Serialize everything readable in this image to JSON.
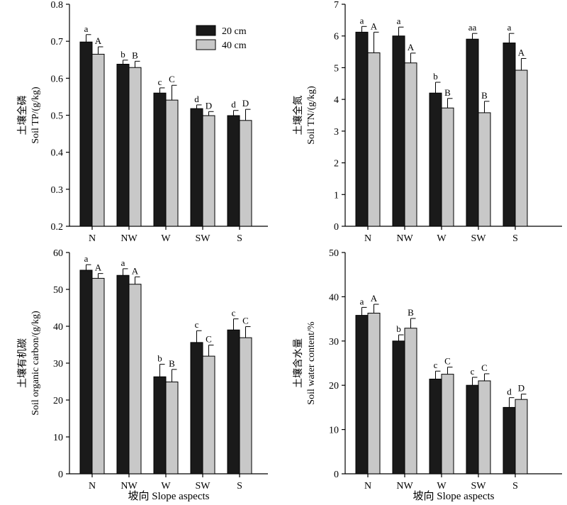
{
  "colors": {
    "series_20": "#1a1a1a",
    "series_40": "#c8c8c8",
    "axis": "#000000",
    "bar_edge": "#000000"
  },
  "legend": {
    "item_20": "20 cm",
    "item_40": "40 cm"
  },
  "chart_data": [
    {
      "type": "bar",
      "ylabel": [
        "土壤全磷",
        "Soil TP/(g/kg)"
      ],
      "xlabel": "",
      "categories": [
        "N",
        "NW",
        "W",
        "SW",
        "S"
      ],
      "ylim": [
        0.2,
        0.8
      ],
      "yticks": [
        "0.2",
        "0.3",
        "0.4",
        "0.5",
        "0.6",
        "0.7",
        "0.8"
      ],
      "series": [
        {
          "name": "20 cm",
          "values": [
            0.698,
            0.638,
            0.56,
            0.518,
            0.499
          ],
          "errors": [
            0.02,
            0.011,
            0.014,
            0.01,
            0.014
          ],
          "letters": [
            "a",
            "b",
            "c",
            "d",
            "d"
          ]
        },
        {
          "name": "40 cm",
          "values": [
            0.665,
            0.629,
            0.541,
            0.499,
            0.486
          ],
          "errors": [
            0.02,
            0.017,
            0.04,
            0.011,
            0.03
          ],
          "letters": [
            "A",
            "B",
            "C",
            "D",
            "D"
          ]
        }
      ]
    },
    {
      "type": "bar",
      "ylabel": [
        "土壤全氮",
        "Soil TN/(g/kg)"
      ],
      "xlabel": "",
      "categories": [
        "N",
        "NW",
        "W",
        "SW",
        "S"
      ],
      "ylim": [
        0,
        7
      ],
      "yticks": [
        "0",
        "1",
        "2",
        "3",
        "4",
        "5",
        "6",
        "7"
      ],
      "series": [
        {
          "name": "20 cm",
          "values": [
            6.12,
            6.0,
            4.2,
            5.9,
            5.78
          ],
          "errors": [
            0.18,
            0.28,
            0.34,
            0.18,
            0.3
          ],
          "letters": [
            "a",
            "a",
            "b",
            "aa",
            "a"
          ]
        },
        {
          "name": "40 cm",
          "values": [
            5.47,
            5.15,
            3.73,
            3.58,
            4.92
          ],
          "errors": [
            0.65,
            0.31,
            0.3,
            0.36,
            0.37
          ],
          "letters": [
            "A",
            "A",
            "B",
            "B",
            "A"
          ]
        }
      ]
    },
    {
      "type": "bar",
      "ylabel": [
        "土壤有机碳",
        "Soil organic carbon/(g/kg)"
      ],
      "xlabel": "坡向 Slope aspects",
      "categories": [
        "N",
        "NW",
        "W",
        "SW",
        "S"
      ],
      "ylim": [
        0,
        60
      ],
      "yticks": [
        "0",
        "10",
        "20",
        "30",
        "40",
        "50",
        "60"
      ],
      "series": [
        {
          "name": "20 cm",
          "values": [
            55.2,
            53.8,
            26.3,
            35.6,
            39.0
          ],
          "errors": [
            1.5,
            1.8,
            3.4,
            3.2,
            3.0
          ],
          "letters": [
            "a",
            "a",
            "b",
            "c",
            "c"
          ]
        },
        {
          "name": "40 cm",
          "values": [
            53.0,
            51.4,
            24.9,
            31.9,
            36.9
          ],
          "errors": [
            1.3,
            2.0,
            3.4,
            3.0,
            3.0
          ],
          "letters": [
            "A",
            "A",
            "B",
            "C",
            "C"
          ]
        }
      ]
    },
    {
      "type": "bar",
      "ylabel": [
        "土壤含水量",
        "Soil water content/%"
      ],
      "xlabel": "坡向 Slope aspects",
      "categories": [
        "N",
        "NW",
        "W",
        "SW",
        "S"
      ],
      "ylim": [
        0,
        50
      ],
      "yticks": [
        "0",
        "10",
        "20",
        "30",
        "40",
        "50"
      ],
      "series": [
        {
          "name": "20 cm",
          "values": [
            35.8,
            30.0,
            21.4,
            20.0,
            15.0
          ],
          "errors": [
            1.8,
            1.4,
            1.8,
            1.8,
            2.2
          ],
          "letters": [
            "a",
            "b",
            "c",
            "c",
            "d"
          ]
        },
        {
          "name": "40 cm",
          "values": [
            36.3,
            32.9,
            22.5,
            21.0,
            16.8
          ],
          "errors": [
            2.0,
            2.2,
            1.6,
            1.6,
            1.2
          ],
          "letters": [
            "A",
            "B",
            "C",
            "C",
            "D"
          ]
        }
      ]
    }
  ]
}
